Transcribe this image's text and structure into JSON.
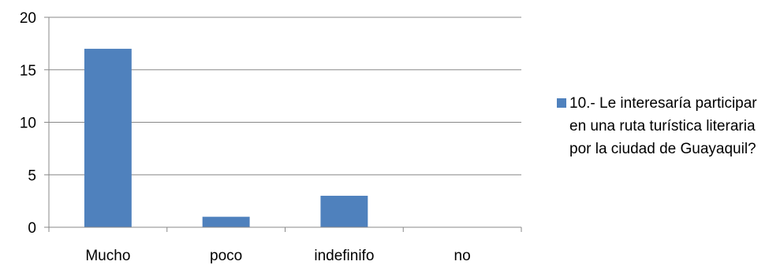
{
  "chart_data": {
    "type": "bar",
    "title": "",
    "xlabel": "",
    "ylabel": "",
    "categories": [
      "Mucho",
      "poco",
      "indefinifo",
      "no"
    ],
    "series": [
      {
        "name": "10.- Le interesaría participar en una ruta turística literaria por la ciudad de Guayaquil?",
        "values": [
          17,
          1,
          3,
          0
        ],
        "color": "#4f81bd"
      }
    ],
    "ylim": [
      0,
      20
    ],
    "yticks": [
      0,
      5,
      10,
      15,
      20
    ],
    "grid": true,
    "legend": "right"
  }
}
